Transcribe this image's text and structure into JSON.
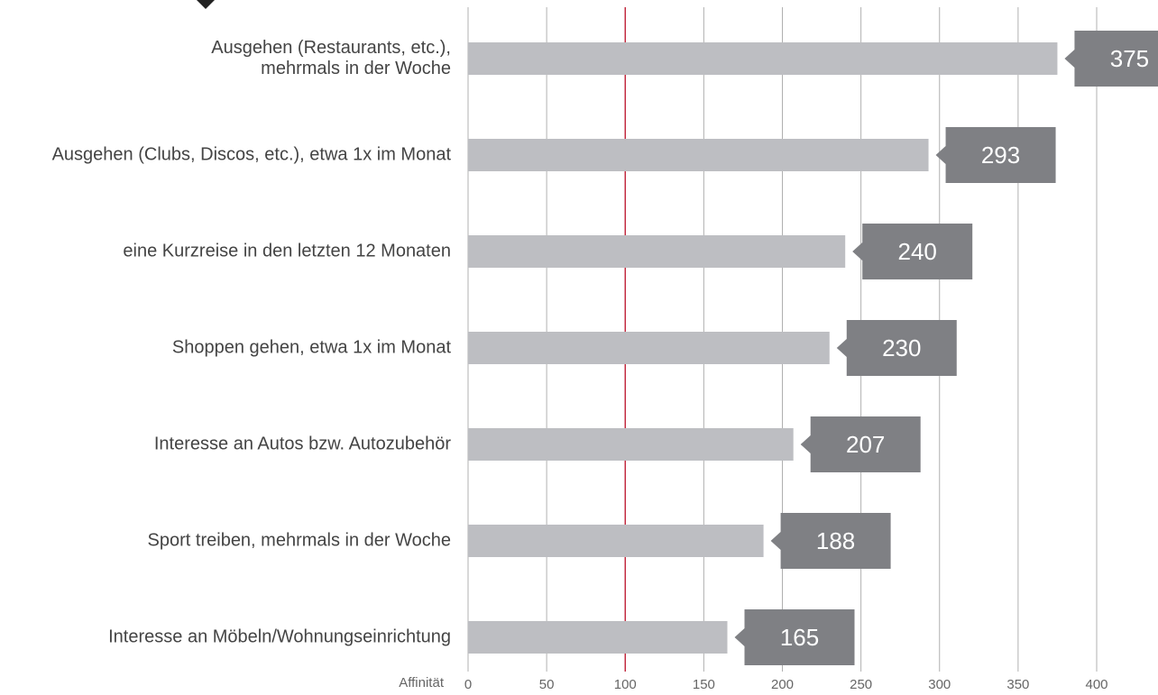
{
  "chart_data": {
    "type": "bar",
    "orientation": "horizontal",
    "categories": [
      "Ausgehen (Restaurants, etc.),\nmehrmals in der Woche",
      "Ausgehen (Clubs, Discos, etc.), etwa 1x im Monat",
      "eine Kurzreise in den letzten 12 Monaten",
      "Shoppen gehen, etwa 1x im Monat",
      "Interesse an Autos bzw. Autozubehör",
      "Sport treiben, mehrmals in der Woche",
      "Interesse an Möbeln/Wohnungseinrichtung"
    ],
    "values": [
      375,
      293,
      240,
      230,
      207,
      188,
      165
    ],
    "color": "#bdbec2",
    "label_color": "#7f8084",
    "xlabel": "Affinität",
    "xlim": [
      0,
      400
    ],
    "xticks": [
      0,
      50,
      100,
      150,
      200,
      250,
      300,
      350,
      400
    ],
    "reference_line": 100,
    "reference_color": "#c0142c",
    "grid": true
  }
}
